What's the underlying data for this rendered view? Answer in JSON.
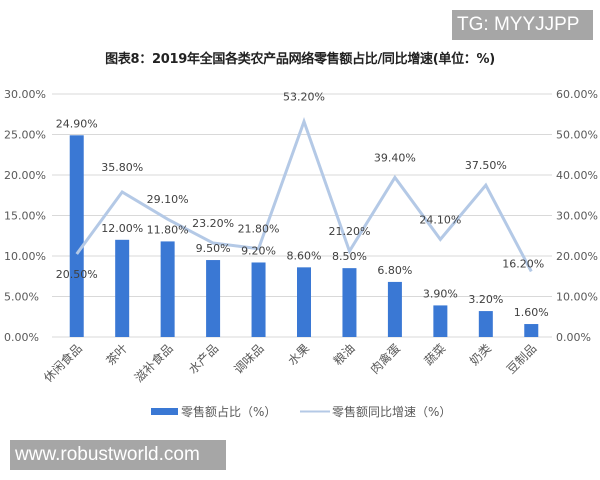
{
  "badges": {
    "top_right": "TG: MYYJJPP",
    "bottom_left": "www.robustworld.com"
  },
  "chart_data": {
    "type": "bar+line",
    "title": "图表8：2019年全国各类农产品网络零售额占比/同比增速(单位：%)",
    "categories": [
      "休闲食品",
      "茶叶",
      "滋补食品",
      "水产品",
      "调味品",
      "水果",
      "粮油",
      "肉禽蛋",
      "蔬菜",
      "奶类",
      "豆制品"
    ],
    "series": [
      {
        "name": "零售额占比（%）",
        "type": "bar",
        "axis": "left",
        "color": "#3a78d4",
        "values": [
          24.9,
          12.0,
          11.8,
          9.5,
          9.2,
          8.6,
          8.5,
          6.8,
          3.9,
          3.2,
          1.6
        ],
        "labels": [
          "24.90%",
          "12.00%",
          "11.80%",
          "9.50%",
          "9.20%",
          "8.60%",
          "8.50%",
          "6.80%",
          "3.90%",
          "3.20%",
          "1.60%"
        ]
      },
      {
        "name": "零售额同比增速（%）",
        "type": "line",
        "axis": "right",
        "color": "#b4c9e6",
        "values": [
          20.5,
          35.8,
          29.1,
          23.2,
          21.8,
          53.2,
          21.2,
          39.4,
          24.1,
          37.5,
          16.2
        ],
        "labels": [
          "20.50%",
          "35.80%",
          "29.10%",
          "23.20%",
          "21.80%",
          "53.20%",
          "21.20%",
          "39.40%",
          "24.10%",
          "37.50%",
          "16.20%"
        ]
      }
    ],
    "left_axis": {
      "range": [
        0,
        30
      ],
      "ticks": [
        "0.00%",
        "5.00%",
        "10.00%",
        "15.00%",
        "20.00%",
        "25.00%",
        "30.00%"
      ]
    },
    "right_axis": {
      "range": [
        0,
        60
      ],
      "ticks": [
        "0.00%",
        "10.00%",
        "20.00%",
        "30.00%",
        "40.00%",
        "50.00%",
        "60.00%"
      ]
    },
    "grid": true,
    "legend_position": "bottom",
    "xlabel": "",
    "ylabel": ""
  }
}
